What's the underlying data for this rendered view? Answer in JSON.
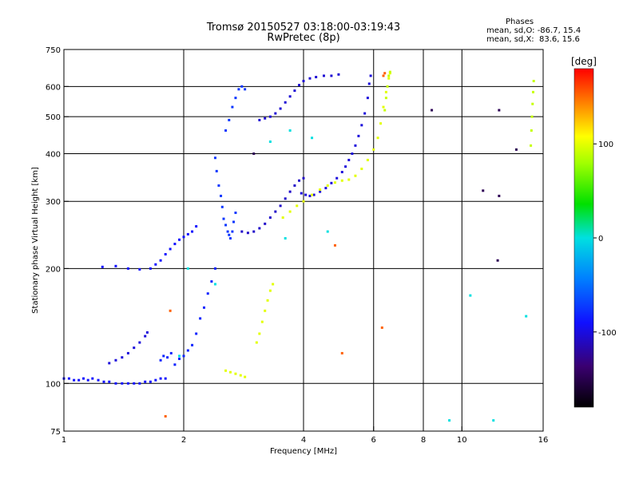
{
  "header": {
    "title": "Tromsø 20150527 03:18:00-03:19:43",
    "subtitle": "RwPretec (8p)",
    "phase_title": "Phases",
    "phase_o": "mean, sd,O: -86.7, 15.4",
    "phase_x": "mean, sd,X:  83.6, 15.6"
  },
  "chart_data": {
    "type": "scatter",
    "xlabel": "Frequency [MHz]",
    "ylabel": "Stationary phase Virtual Height [km]",
    "xscale": "log",
    "yscale": "log",
    "xlim": [
      1,
      16
    ],
    "ylim": [
      75,
      750
    ],
    "x_ticks": [
      1,
      2,
      4,
      6,
      8,
      10,
      16
    ],
    "x_gridlines": [
      2,
      4,
      6,
      8,
      10
    ],
    "y_ticks": [
      75,
      100,
      200,
      300,
      400,
      500,
      600,
      750
    ],
    "y_gridlines": [
      100,
      200,
      300,
      400,
      500,
      600
    ],
    "colorbar": {
      "label": "[deg]",
      "range": [
        -180,
        180
      ],
      "ticks": [
        100,
        0,
        -100
      ]
    },
    "series": [
      {
        "phase": -100,
        "points": [
          [
            1.0,
            103
          ],
          [
            1.03,
            103
          ],
          [
            1.06,
            102
          ],
          [
            1.09,
            102
          ],
          [
            1.12,
            103
          ],
          [
            1.15,
            102
          ],
          [
            1.18,
            103
          ],
          [
            1.22,
            102
          ],
          [
            1.26,
            101
          ],
          [
            1.3,
            101
          ],
          [
            1.35,
            100
          ],
          [
            1.4,
            100
          ],
          [
            1.45,
            100
          ],
          [
            1.5,
            100
          ],
          [
            1.55,
            100
          ],
          [
            1.6,
            101
          ],
          [
            1.65,
            101
          ],
          [
            1.7,
            102
          ],
          [
            1.75,
            103
          ],
          [
            1.8,
            103
          ]
        ]
      },
      {
        "phase": -110,
        "points": [
          [
            1.3,
            113
          ],
          [
            1.35,
            115
          ],
          [
            1.4,
            117
          ],
          [
            1.45,
            120
          ],
          [
            1.5,
            124
          ],
          [
            1.55,
            128
          ],
          [
            1.6,
            133
          ],
          [
            1.62,
            136
          ]
        ]
      },
      {
        "phase": -95,
        "points": [
          [
            1.75,
            115
          ],
          [
            1.78,
            118
          ],
          [
            1.82,
            117
          ],
          [
            1.86,
            120
          ],
          [
            1.9,
            112
          ],
          [
            1.95,
            116
          ],
          [
            2.0,
            118
          ],
          [
            2.05,
            122
          ],
          [
            2.1,
            126
          ],
          [
            2.15,
            135
          ],
          [
            2.2,
            148
          ],
          [
            2.25,
            158
          ],
          [
            2.3,
            172
          ],
          [
            2.35,
            185
          ],
          [
            2.4,
            200
          ]
        ]
      },
      {
        "phase": -100,
        "points": [
          [
            1.25,
            202
          ],
          [
            1.35,
            203
          ],
          [
            1.45,
            200
          ],
          [
            1.55,
            199
          ],
          [
            1.65,
            200
          ],
          [
            1.7,
            205
          ],
          [
            1.75,
            210
          ],
          [
            1.8,
            218
          ],
          [
            1.85,
            225
          ],
          [
            1.9,
            232
          ],
          [
            1.95,
            238
          ],
          [
            2.0,
            242
          ],
          [
            2.05,
            246
          ],
          [
            2.1,
            250
          ],
          [
            2.15,
            258
          ]
        ]
      },
      {
        "phase": -90,
        "points": [
          [
            2.4,
            390
          ],
          [
            2.42,
            360
          ],
          [
            2.45,
            330
          ],
          [
            2.48,
            310
          ],
          [
            2.5,
            290
          ],
          [
            2.52,
            270
          ],
          [
            2.55,
            260
          ],
          [
            2.58,
            250
          ],
          [
            2.6,
            245
          ],
          [
            2.62,
            240
          ],
          [
            2.65,
            250
          ],
          [
            2.67,
            265
          ],
          [
            2.7,
            280
          ]
        ]
      },
      {
        "phase": -115,
        "points": [
          [
            2.8,
            250
          ],
          [
            2.9,
            248
          ],
          [
            3.0,
            250
          ],
          [
            3.1,
            255
          ],
          [
            3.2,
            262
          ],
          [
            3.3,
            272
          ],
          [
            3.4,
            282
          ],
          [
            3.5,
            292
          ],
          [
            3.6,
            305
          ],
          [
            3.7,
            318
          ],
          [
            3.8,
            330
          ],
          [
            3.9,
            340
          ],
          [
            4.0,
            345
          ]
        ]
      },
      {
        "phase": -110,
        "points": [
          [
            3.95,
            315
          ],
          [
            4.05,
            312
          ],
          [
            4.15,
            310
          ],
          [
            4.25,
            312
          ],
          [
            4.4,
            318
          ],
          [
            4.55,
            325
          ],
          [
            4.7,
            335
          ],
          [
            4.85,
            345
          ],
          [
            5.0,
            358
          ],
          [
            5.1,
            370
          ],
          [
            5.2,
            385
          ],
          [
            5.3,
            400
          ],
          [
            5.4,
            420
          ],
          [
            5.5,
            445
          ],
          [
            5.6,
            475
          ],
          [
            5.7,
            510
          ],
          [
            5.8,
            560
          ],
          [
            5.85,
            610
          ],
          [
            5.9,
            640
          ]
        ]
      },
      {
        "phase": -90,
        "points": [
          [
            2.55,
            460
          ],
          [
            2.6,
            490
          ],
          [
            2.65,
            530
          ],
          [
            2.7,
            560
          ],
          [
            2.75,
            590
          ],
          [
            2.8,
            600
          ],
          [
            2.85,
            590
          ]
        ]
      },
      {
        "phase": -112,
        "points": [
          [
            3.1,
            490
          ],
          [
            3.2,
            495
          ],
          [
            3.3,
            500
          ],
          [
            3.4,
            510
          ],
          [
            3.5,
            525
          ],
          [
            3.6,
            545
          ],
          [
            3.7,
            565
          ],
          [
            3.8,
            585
          ],
          [
            3.9,
            605
          ],
          [
            4.0,
            620
          ],
          [
            4.15,
            630
          ],
          [
            4.3,
            635
          ],
          [
            4.5,
            640
          ],
          [
            4.7,
            640
          ],
          [
            4.9,
            645
          ]
        ]
      },
      {
        "phase": 85,
        "points": [
          [
            2.55,
            108
          ],
          [
            2.62,
            107
          ],
          [
            2.7,
            106
          ],
          [
            2.78,
            105
          ],
          [
            2.85,
            104
          ]
        ]
      },
      {
        "phase": 85,
        "points": [
          [
            3.05,
            128
          ],
          [
            3.1,
            135
          ],
          [
            3.15,
            145
          ],
          [
            3.2,
            155
          ],
          [
            3.25,
            165
          ],
          [
            3.3,
            175
          ],
          [
            3.35,
            182
          ]
        ]
      },
      {
        "phase": 85,
        "points": [
          [
            3.55,
            272
          ],
          [
            3.7,
            282
          ],
          [
            3.85,
            292
          ],
          [
            4.0,
            300
          ],
          [
            4.2,
            312
          ],
          [
            4.4,
            322
          ],
          [
            4.6,
            330
          ],
          [
            4.8,
            336
          ],
          [
            5.0,
            340
          ],
          [
            5.2,
            342
          ],
          [
            5.4,
            350
          ],
          [
            5.6,
            365
          ],
          [
            5.8,
            385
          ],
          [
            6.0,
            410
          ],
          [
            6.15,
            440
          ],
          [
            6.25,
            480
          ],
          [
            6.35,
            530
          ],
          [
            6.45,
            580
          ],
          [
            6.55,
            630
          ],
          [
            6.6,
            650
          ]
        ]
      },
      {
        "phase": 70,
        "points": [
          [
            6.4,
            520
          ],
          [
            6.45,
            560
          ],
          [
            6.5,
            600
          ],
          [
            6.55,
            640
          ],
          [
            6.6,
            655
          ],
          [
            14.9,
            420
          ],
          [
            14.95,
            460
          ],
          [
            15.0,
            500
          ],
          [
            15.05,
            540
          ],
          [
            15.1,
            580
          ],
          [
            15.15,
            620
          ]
        ]
      },
      {
        "phase": 150,
        "points": [
          [
            6.35,
            640
          ],
          [
            6.4,
            650
          ],
          [
            1.8,
            82
          ],
          [
            1.85,
            155
          ],
          [
            4.8,
            230
          ],
          [
            6.3,
            140
          ],
          [
            5.0,
            120
          ]
        ]
      },
      {
        "phase": -40,
        "points": [
          [
            2.05,
            200
          ],
          [
            2.4,
            182
          ],
          [
            3.3,
            430
          ],
          [
            3.7,
            460
          ],
          [
            4.2,
            440
          ],
          [
            4.6,
            250
          ],
          [
            3.6,
            240
          ],
          [
            1.95,
            118
          ],
          [
            9.3,
            80
          ],
          [
            10.5,
            170
          ],
          [
            12.0,
            80
          ],
          [
            14.5,
            150
          ]
        ]
      },
      {
        "phase": -150,
        "points": [
          [
            12.3,
            210
          ],
          [
            12.4,
            520
          ],
          [
            12.4,
            310
          ],
          [
            13.7,
            410
          ],
          [
            11.3,
            320
          ],
          [
            8.4,
            520
          ],
          [
            3.0,
            400
          ]
        ]
      }
    ]
  }
}
